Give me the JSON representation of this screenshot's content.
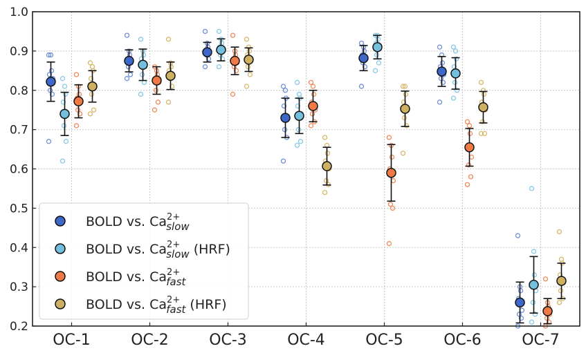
{
  "chart_data": {
    "type": "scatter",
    "categories": [
      "OC-1",
      "OC-2",
      "OC-3",
      "OC-4",
      "OC-5",
      "OC-6",
      "OC-7"
    ],
    "ylim": [
      0.2,
      1.0
    ],
    "yticks": [
      "0.2",
      "0.3",
      "0.4",
      "0.5",
      "0.6",
      "0.7",
      "0.8",
      "0.9",
      "1.0"
    ],
    "grid": true,
    "legend_position": "bottom-left",
    "xlabel": "",
    "ylabel": "",
    "title": "",
    "series": [
      {
        "legend_base": "BOLD vs. Ca",
        "legend_sup": "2+",
        "legend_sub": "slow",
        "legend_suffix": "",
        "color": "#3d67c9",
        "light": "#6f8fd8",
        "means": [
          0.822,
          0.875,
          0.897,
          0.73,
          0.882,
          0.848,
          0.26
        ],
        "err": [
          0.05,
          0.028,
          0.025,
          0.05,
          0.032,
          0.038,
          0.052
        ],
        "points": [
          [
            0.67,
            0.79,
            0.8,
            0.83,
            0.84,
            0.85,
            0.89,
            0.89
          ],
          [
            0.83,
            0.84,
            0.86,
            0.87,
            0.88,
            0.89,
            0.9,
            0.94
          ],
          [
            0.86,
            0.88,
            0.89,
            0.9,
            0.9,
            0.91,
            0.92,
            0.95
          ],
          [
            0.62,
            0.68,
            0.7,
            0.73,
            0.76,
            0.78,
            0.8,
            0.81
          ],
          [
            0.81,
            0.86,
            0.87,
            0.88,
            0.89,
            0.9,
            0.91,
            0.92
          ],
          [
            0.77,
            0.82,
            0.83,
            0.84,
            0.86,
            0.87,
            0.89,
            0.91
          ],
          [
            0.2,
            0.22,
            0.23,
            0.24,
            0.27,
            0.29,
            0.3,
            0.43
          ]
        ]
      },
      {
        "legend_base": "BOLD vs. Ca",
        "legend_sup": "2+",
        "legend_sub": "slow",
        "legend_suffix": " (HRF)",
        "color": "#74bede",
        "light": "#86c8e6",
        "means": [
          0.74,
          0.865,
          0.903,
          0.735,
          0.91,
          0.843,
          0.305
        ],
        "err": [
          0.055,
          0.04,
          0.028,
          0.045,
          0.03,
          0.04,
          0.072
        ],
        "points": [
          [
            0.62,
            0.67,
            0.71,
            0.74,
            0.77,
            0.79,
            0.81,
            0.83
          ],
          [
            0.79,
            0.82,
            0.84,
            0.86,
            0.88,
            0.89,
            0.9,
            0.93
          ],
          [
            0.86,
            0.88,
            0.89,
            0.9,
            0.91,
            0.92,
            0.93,
            0.95
          ],
          [
            0.66,
            0.67,
            0.7,
            0.74,
            0.76,
            0.78,
            0.79,
            0.82
          ],
          [
            0.85,
            0.87,
            0.89,
            0.91,
            0.92,
            0.93,
            0.94,
            0.94
          ],
          [
            0.78,
            0.8,
            0.82,
            0.84,
            0.86,
            0.88,
            0.9,
            0.91
          ],
          [
            0.21,
            0.23,
            0.26,
            0.29,
            0.31,
            0.33,
            0.39,
            0.55
          ]
        ]
      },
      {
        "legend_base": "BOLD vs. Ca",
        "legend_sup": "2+",
        "legend_sub": "fast",
        "legend_suffix": "",
        "color": "#f07a45",
        "light": "#ee8a5c",
        "means": [
          0.772,
          0.825,
          0.875,
          0.76,
          0.59,
          0.655,
          0.238
        ],
        "err": [
          0.042,
          0.035,
          0.035,
          0.04,
          0.072,
          0.048,
          0.032
        ],
        "points": [
          [
            0.71,
            0.74,
            0.75,
            0.77,
            0.78,
            0.79,
            0.81,
            0.84
          ],
          [
            0.75,
            0.77,
            0.8,
            0.82,
            0.83,
            0.84,
            0.85,
            0.86
          ],
          [
            0.79,
            0.85,
            0.86,
            0.87,
            0.88,
            0.89,
            0.9,
            0.94
          ],
          [
            0.71,
            0.72,
            0.74,
            0.75,
            0.77,
            0.79,
            0.81,
            0.82
          ],
          [
            0.41,
            0.5,
            0.51,
            0.57,
            0.6,
            0.63,
            0.66,
            0.68
          ],
          [
            0.56,
            0.58,
            0.61,
            0.63,
            0.66,
            0.69,
            0.71,
            0.72
          ],
          [
            0.2,
            0.21,
            0.22,
            0.23,
            0.24,
            0.25,
            0.26,
            0.32
          ]
        ]
      },
      {
        "legend_base": "BOLD vs. Ca",
        "legend_sup": "2+",
        "legend_sub": "fast",
        "legend_suffix": " (HRF)",
        "color": "#cdb060",
        "light": "#d7b86a",
        "means": [
          0.81,
          0.837,
          0.878,
          0.607,
          0.753,
          0.757,
          0.315
        ],
        "err": [
          0.04,
          0.035,
          0.03,
          0.048,
          0.045,
          0.04,
          0.045
        ],
        "points": [
          [
            0.74,
            0.75,
            0.79,
            0.81,
            0.83,
            0.85,
            0.86,
            0.87
          ],
          [
            0.77,
            0.81,
            0.83,
            0.84,
            0.85,
            0.86,
            0.87,
            0.93
          ],
          [
            0.81,
            0.84,
            0.86,
            0.88,
            0.89,
            0.9,
            0.91,
            0.93
          ],
          [
            0.54,
            0.56,
            0.57,
            0.6,
            0.62,
            0.64,
            0.66,
            0.68
          ],
          [
            0.64,
            0.71,
            0.73,
            0.75,
            0.77,
            0.79,
            0.81,
            0.81
          ],
          [
            0.69,
            0.69,
            0.72,
            0.75,
            0.77,
            0.79,
            0.8,
            0.82
          ],
          [
            0.26,
            0.27,
            0.29,
            0.31,
            0.33,
            0.36,
            0.37,
            0.44
          ]
        ]
      }
    ]
  }
}
